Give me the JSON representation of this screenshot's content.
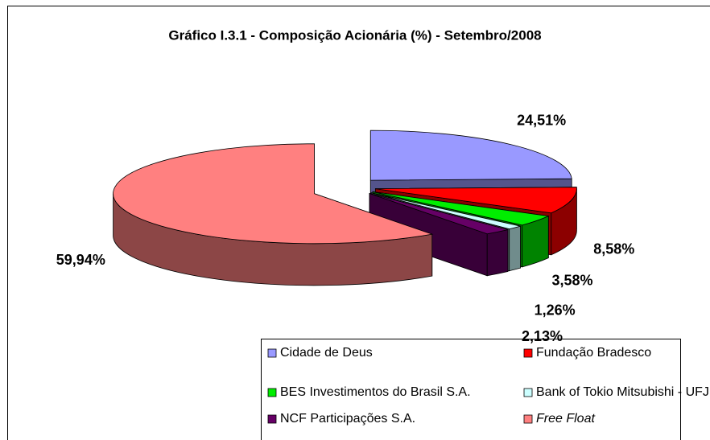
{
  "chart_data": {
    "type": "pie",
    "title": "Gráfico I.3.1 - Composição Acionária (%) - Setembro/2008",
    "categories": [
      "Cidade de Deus",
      "Fundação Bradesco",
      "BES Investimentos do Brasil S.A.",
      "Bank of Tokio Mitsubishi - UFJ (MUFG)",
      "NCF Participações S.A.",
      "Free Float"
    ],
    "values": [
      24.51,
      8.58,
      3.58,
      1.26,
      2.13,
      59.94
    ],
    "value_labels": [
      "24,51%",
      "8,58%",
      "3,58%",
      "1,26%",
      "2,13%",
      "59,94%"
    ],
    "colors": [
      "#9999ff",
      "#ff0000",
      "#00ee00",
      "#ccffff",
      "#660066",
      "#ff8080"
    ],
    "legend": "bottom"
  }
}
